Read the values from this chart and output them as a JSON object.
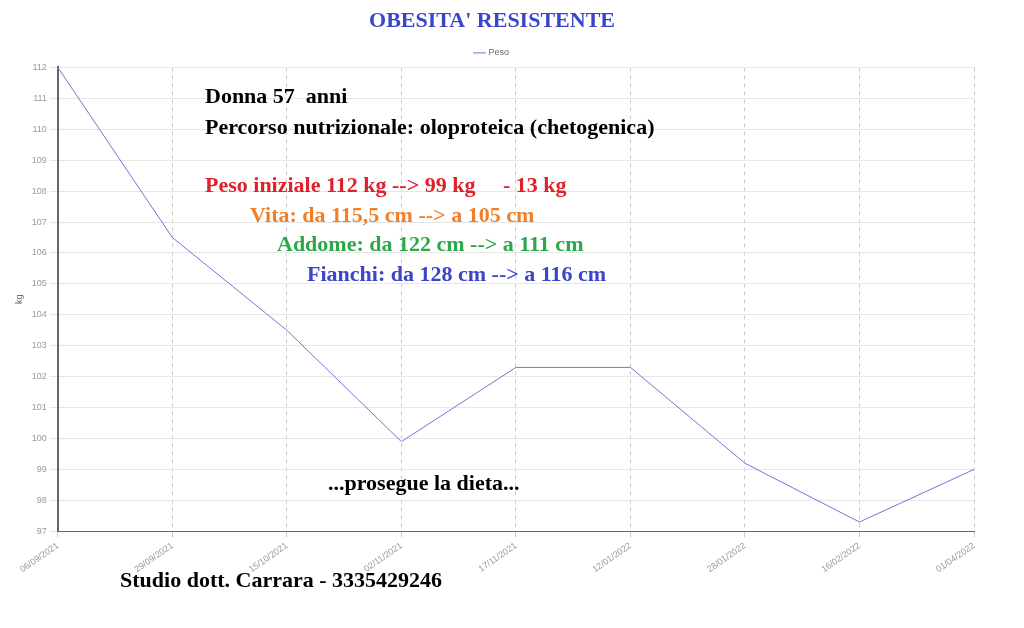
{
  "chart_data": {
    "type": "line",
    "title": "OBESITA' RESISTENTE",
    "ylabel": "kg",
    "categories": [
      "06/09/2021",
      "29/09/2021",
      "15/10/2021",
      "02/11/2021",
      "17/11/2021",
      "12/01/2022",
      "28/01/2022",
      "16/02/2022",
      "01/04/2022"
    ],
    "series": [
      {
        "name": "Peso",
        "color": "#7b72d6",
        "values": [
          112,
          106.5,
          103.5,
          99.9,
          102.3,
          102.3,
          99.2,
          97.3,
          99.0
        ]
      }
    ],
    "ylim": [
      97,
      112
    ],
    "yticks": [
      97,
      98,
      99,
      100,
      101,
      102,
      103,
      104,
      105,
      106,
      107,
      108,
      109,
      110,
      111,
      112
    ],
    "grid": true,
    "legend": "top",
    "marker": "none",
    "line_style": "solid",
    "annotations": [
      "Donna 57  anni",
      "Percorso nutrizionale: oloproteica (chetogenica)",
      "Peso iniziale 112 kg --> 99 kg     - 13 kg",
      "Vita: da 115,5 cm --> a 105 cm",
      "Addome: da 122 cm --> a 111 cm",
      "Fianchi: da 128 cm --> a 116 cm",
      "...prosegue la dieta...",
      "Studio dott. Carrara - 3335429246"
    ]
  }
}
